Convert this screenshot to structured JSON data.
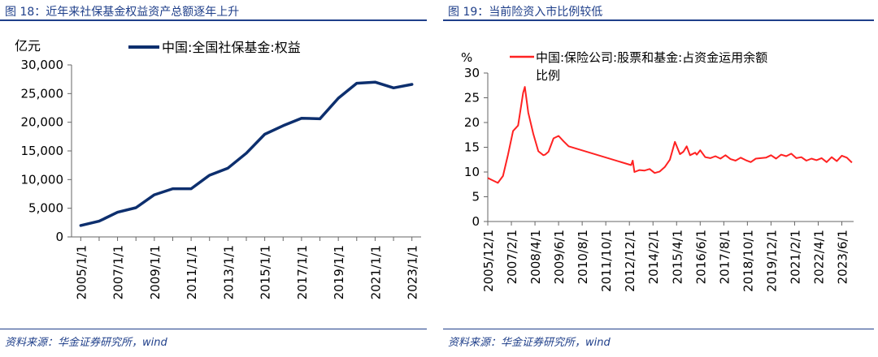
{
  "left_chart": {
    "figure_title": "图 18：近年来社保基金权益资产总额逐年上升",
    "source": "资料来源：华金证券研究所，wind",
    "colors": {
      "line": "#0d2f6e",
      "axis": "#666666",
      "title": "#1f3f8a"
    },
    "chart_data": {
      "type": "line",
      "ylabel": "亿元",
      "ylim": [
        0,
        30000
      ],
      "yticks": [
        0,
        5000,
        10000,
        15000,
        20000,
        25000,
        30000
      ],
      "ytick_labels": [
        "0",
        "5,000",
        "10,000",
        "15,000",
        "20,000",
        "25,000",
        "30,000"
      ],
      "xtick_labels": [
        "2005/1/1",
        "2007/1/1",
        "2009/1/1",
        "2011/1/1",
        "2013/1/1",
        "2015/1/1",
        "2017/1/1",
        "2019/1/1",
        "2021/1/1",
        "2023/1/1"
      ],
      "x": [
        "2005/1/1",
        "2006/1/1",
        "2007/1/1",
        "2008/1/1",
        "2009/1/1",
        "2010/1/1",
        "2011/1/1",
        "2012/1/1",
        "2013/1/1",
        "2014/1/1",
        "2015/1/1",
        "2016/1/1",
        "2017/1/1",
        "2018/1/1",
        "2019/1/1",
        "2020/1/1",
        "2021/1/1",
        "2022/1/1",
        "2023/1/1"
      ],
      "series": [
        {
          "name": "中国:全国社保基金:权益",
          "values": [
            2000,
            2750,
            4300,
            5100,
            7350,
            8400,
            8400,
            10750,
            12000,
            14600,
            17900,
            19400,
            20700,
            20600,
            24200,
            26800,
            27000,
            26000,
            26600
          ]
        }
      ],
      "legend": "top"
    }
  },
  "right_chart": {
    "figure_title": "图 19：当前险资入市比例较低",
    "source": "资料来源：华金证券研究所，wind",
    "colors": {
      "line": "#ff2222",
      "axis": "#666666",
      "title": "#1f3f8a"
    },
    "chart_data": {
      "type": "line",
      "ylabel": "%",
      "ylim": [
        0,
        30
      ],
      "yticks": [
        0,
        5,
        10,
        15,
        20,
        25,
        30
      ],
      "ytick_labels": [
        "0",
        "5",
        "10",
        "15",
        "20",
        "25",
        "30"
      ],
      "xtick_labels": [
        "2005/12/1",
        "2007/2/1",
        "2008/4/1",
        "2009/6/1",
        "2010/8/1",
        "2011/10/1",
        "2012/12/1",
        "2014/2/1",
        "2015/4/1",
        "2016/6/1",
        "2017/8/1",
        "2018/10/1",
        "2019/12/1",
        "2021/2/1",
        "2022/4/1",
        "2023/6/1"
      ],
      "x_start": "2005/12",
      "x_end": "2024/1",
      "series": [
        {
          "name": "中国:保险公司:股票和基金:占资金运用余额比例",
          "x": [
            "2005/12",
            "2006/3",
            "2006/6",
            "2006/9",
            "2006/12",
            "2007/3",
            "2007/6",
            "2007/9",
            "2007/10",
            "2007/12",
            "2008/3",
            "2008/6",
            "2008/9",
            "2008/10",
            "2008/12",
            "2009/3",
            "2009/6",
            "2009/9",
            "2009/12",
            "2013/1",
            "2013/2",
            "2013/3",
            "2013/6",
            "2013/9",
            "2013/12",
            "2014/3",
            "2014/6",
            "2014/9",
            "2014/12",
            "2015/3",
            "2015/6",
            "2015/8",
            "2015/10",
            "2015/12",
            "2016/3",
            "2016/4",
            "2016/6",
            "2016/9",
            "2016/12",
            "2017/3",
            "2017/6",
            "2017/9",
            "2017/12",
            "2018/3",
            "2018/6",
            "2018/9",
            "2018/12",
            "2019/3",
            "2019/6",
            "2019/9",
            "2019/12",
            "2020/3",
            "2020/6",
            "2020/9",
            "2020/12",
            "2021/3",
            "2021/6",
            "2021/9",
            "2021/12",
            "2022/3",
            "2022/6",
            "2022/9",
            "2022/12",
            "2023/3",
            "2023/6",
            "2023/9",
            "2023/12"
          ],
          "values": [
            8.8,
            8.3,
            7.8,
            9.2,
            13.5,
            18.3,
            19.4,
            26.0,
            27.2,
            22.0,
            17.7,
            14.2,
            13.4,
            13.5,
            14.1,
            16.8,
            17.3,
            16.2,
            15.2,
            11.4,
            12.3,
            10.0,
            10.4,
            10.3,
            10.6,
            9.8,
            10.1,
            11.0,
            12.5,
            16.1,
            13.6,
            14.1,
            15.2,
            13.4,
            13.9,
            13.5,
            14.4,
            13.0,
            12.8,
            13.2,
            12.7,
            13.4,
            12.6,
            12.3,
            12.9,
            12.4,
            12.0,
            12.7,
            12.8,
            12.9,
            13.4,
            12.7,
            13.5,
            13.2,
            13.7,
            12.8,
            13.0,
            12.3,
            12.7,
            12.4,
            12.8,
            12.0,
            13.0,
            12.2,
            13.3,
            12.9,
            11.9
          ]
        }
      ],
      "legend": "top"
    }
  }
}
